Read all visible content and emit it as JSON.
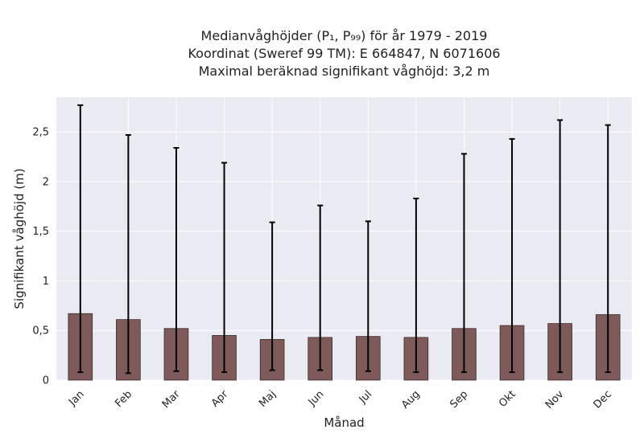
{
  "chart_data": {
    "type": "bar",
    "title_lines": [
      "Medianvåghöjder (P₁, P₉₉) för år 1979 - 2019",
      "Koordinat (Sweref 99 TM): E 664847, N 6071606",
      "Maximal beräknad signifikant våghöjd: 3,2 m"
    ],
    "xlabel": "Månad",
    "ylabel": "Signifikant våghöjd (m)",
    "categories": [
      "Jan",
      "Feb",
      "Mar",
      "Apr",
      "Maj",
      "Jun",
      "Jul",
      "Aug",
      "Sep",
      "Okt",
      "Nov",
      "Dec"
    ],
    "series": [
      {
        "values": [
          0.67,
          0.61,
          0.52,
          0.45,
          0.41,
          0.43,
          0.44,
          0.43,
          0.52,
          0.55,
          0.57,
          0.66
        ],
        "p1": [
          0.08,
          0.07,
          0.09,
          0.08,
          0.1,
          0.1,
          0.09,
          0.08,
          0.08,
          0.08,
          0.08,
          0.08
        ],
        "p99": [
          2.77,
          2.47,
          2.34,
          2.19,
          1.59,
          1.76,
          1.6,
          1.83,
          2.28,
          2.43,
          2.62,
          2.57
        ]
      }
    ],
    "ylim": [
      0,
      2.85
    ],
    "yticks": [
      0,
      0.5,
      1,
      1.5,
      2,
      2.5
    ],
    "ytick_labels": [
      "0",
      "0,5",
      "1",
      "1,5",
      "2",
      "2,5"
    ],
    "grid": true,
    "colors": {
      "bar": "#7f5a5a",
      "bar_edge": "#3a2a2a",
      "errorbar": "#000000",
      "plot_background": "#eaeaf2",
      "grid": "#ffffff"
    }
  }
}
